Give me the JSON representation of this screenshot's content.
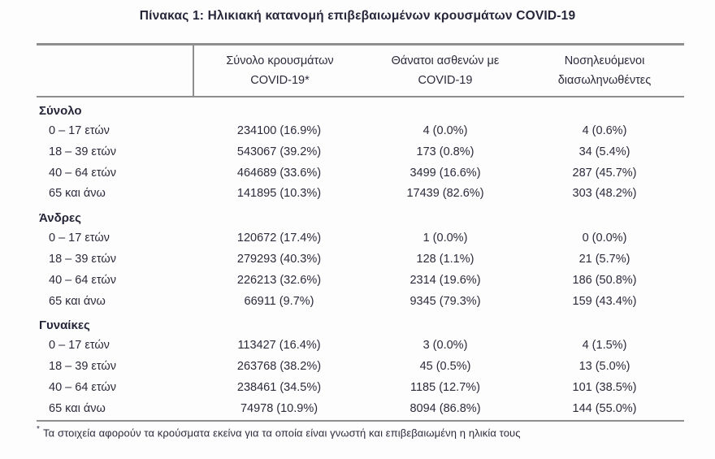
{
  "page": {
    "title": "Πίνακας 1: Ηλικιακή κατανομή επιβεβαιωμένων κρουσμάτων COVID-19",
    "text_color": "#2b2b3c",
    "rule_color": "#8e8e8e"
  },
  "table": {
    "headers": [
      {
        "line1": "Σύνολο κρουσμάτων",
        "line2": "COVID-19*"
      },
      {
        "line1": "Θάνατοι ασθενών με",
        "line2": "COVID-19"
      },
      {
        "line1": "Νοσηλευόμενοι",
        "line2": "διασωληνωθέντες"
      }
    ],
    "sections": [
      {
        "label": "Σύνολο",
        "rows": [
          {
            "age": "0 – 17 ετών",
            "cases": "234100 (16.9%)",
            "deaths": "4 (0.0%)",
            "intubated": "4 (0.6%)"
          },
          {
            "age": "18 – 39 ετών",
            "cases": "543067 (39.2%)",
            "deaths": "173 (0.8%)",
            "intubated": "34 (5.4%)"
          },
          {
            "age": "40 – 64 ετών",
            "cases": "464689 (33.6%)",
            "deaths": "3499 (16.6%)",
            "intubated": "287 (45.7%)"
          },
          {
            "age": "65 και άνω",
            "cases": "141895 (10.3%)",
            "deaths": "17439 (82.6%)",
            "intubated": "303 (48.2%)"
          }
        ]
      },
      {
        "label": "Άνδρες",
        "rows": [
          {
            "age": "0 – 17 ετών",
            "cases": "120672 (17.4%)",
            "deaths": "1 (0.0%)",
            "intubated": "0 (0.0%)"
          },
          {
            "age": "18 – 39 ετών",
            "cases": "279293 (40.3%)",
            "deaths": "128 (1.1%)",
            "intubated": "21 (5.7%)"
          },
          {
            "age": "40 – 64 ετών",
            "cases": "226213 (32.6%)",
            "deaths": "2314 (19.6%)",
            "intubated": "186 (50.8%)"
          },
          {
            "age": "65 και άνω",
            "cases": "66911 (9.7%)",
            "deaths": "9345 (79.3%)",
            "intubated": "159 (43.4%)"
          }
        ]
      },
      {
        "label": "Γυναίκες",
        "rows": [
          {
            "age": "0 – 17 ετών",
            "cases": "113427 (16.4%)",
            "deaths": "3 (0.0%)",
            "intubated": "4 (1.5%)"
          },
          {
            "age": "18 – 39 ετών",
            "cases": "263768 (38.2%)",
            "deaths": "45 (0.5%)",
            "intubated": "13 (5.0%)"
          },
          {
            "age": "40 – 64 ετών",
            "cases": "238461 (34.5%)",
            "deaths": "1185 (12.7%)",
            "intubated": "101 (38.5%)"
          },
          {
            "age": "65 και άνω",
            "cases": "74978 (10.9%)",
            "deaths": "8094 (86.8%)",
            "intubated": "144 (55.0%)"
          }
        ]
      }
    ],
    "footnote": {
      "marker": "*",
      "text": "Τα στοιχεία αφορούν τα κρούσματα εκείνα για τα οποία είναι γνωστή και επιβεβαιωμένη η ηλικία τους"
    }
  }
}
